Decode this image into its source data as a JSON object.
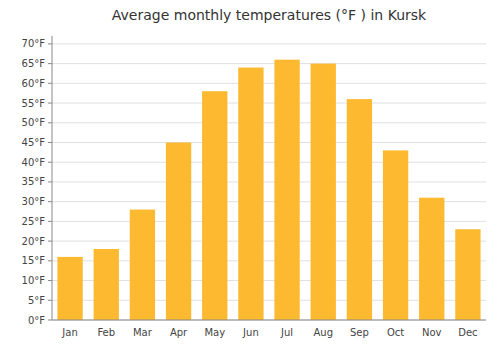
{
  "chart_data": {
    "type": "bar",
    "title": "Average monthly temperatures (°F ) in Kursk",
    "categories": [
      "Jan",
      "Feb",
      "Mar",
      "Apr",
      "May",
      "Jun",
      "Jul",
      "Aug",
      "Sep",
      "Oct",
      "Nov",
      "Dec"
    ],
    "values": [
      16,
      18,
      28,
      45,
      58,
      64,
      66,
      65,
      56,
      43,
      31,
      23
    ],
    "color": "#FDB930",
    "ylim": [
      0,
      72
    ],
    "yticks": [
      {
        "value": 0,
        "label": "0°F"
      },
      {
        "value": 5,
        "label": "5°F"
      },
      {
        "value": 10,
        "label": "10°F"
      },
      {
        "value": 15,
        "label": "15°F"
      },
      {
        "value": 20,
        "label": "20°F"
      },
      {
        "value": 25,
        "label": "25°F"
      },
      {
        "value": 30,
        "label": "30°F"
      },
      {
        "value": 35,
        "label": "35°F"
      },
      {
        "value": 40,
        "label": "40°F"
      },
      {
        "value": 45,
        "label": "45°F"
      },
      {
        "value": 50,
        "label": "50°F"
      },
      {
        "value": 55,
        "label": "55°F"
      },
      {
        "value": 60,
        "label": "60°F"
      },
      {
        "value": 65,
        "label": "65°F"
      },
      {
        "value": 70,
        "label": "70°F"
      }
    ],
    "grid": true
  }
}
